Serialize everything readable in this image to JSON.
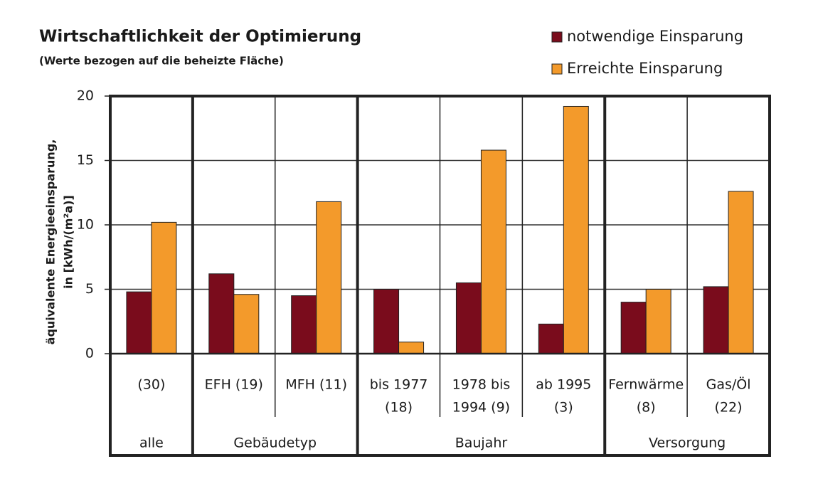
{
  "chart_data": {
    "type": "bar",
    "title": "Wirtschaftlichkeit der Optimierung",
    "subtitle": "(Werte bezogen auf die beheizte Fläche)",
    "y_label": [
      "äquivalente Energieeinsparung,",
      "in [kWh/(m²a)]"
    ],
    "groups": [
      {
        "name": "alle",
        "categories": [
          [
            "(30)"
          ]
        ]
      },
      {
        "name": "Gebäudetyp",
        "categories": [
          [
            "EFH (19)"
          ],
          [
            "MFH (11)"
          ]
        ]
      },
      {
        "name": "Baujahr",
        "categories": [
          [
            "bis 1977",
            "(18)"
          ],
          [
            "1978 bis",
            "1994 (9)"
          ],
          [
            "ab 1995",
            "(3)"
          ]
        ]
      },
      {
        "name": "Versorgung",
        "categories": [
          [
            "Fernwärme",
            "(8)"
          ],
          [
            "Gas/Öl",
            "(22)"
          ]
        ]
      }
    ],
    "series": [
      {
        "name": "notwendige Einsparung",
        "color": "#7a0c1c",
        "values": [
          4.8,
          6.2,
          4.5,
          5.0,
          5.5,
          2.3,
          4.0,
          5.2
        ]
      },
      {
        "name": "Erreichte Einsparung",
        "color": "#f39a2b",
        "values": [
          10.2,
          4.6,
          11.8,
          0.9,
          15.8,
          19.2,
          5.0,
          12.6
        ]
      }
    ],
    "ylim": [
      0,
      20
    ],
    "yticks": [
      0,
      5,
      10,
      15,
      20
    ],
    "grid": true,
    "legend": "top-right"
  }
}
